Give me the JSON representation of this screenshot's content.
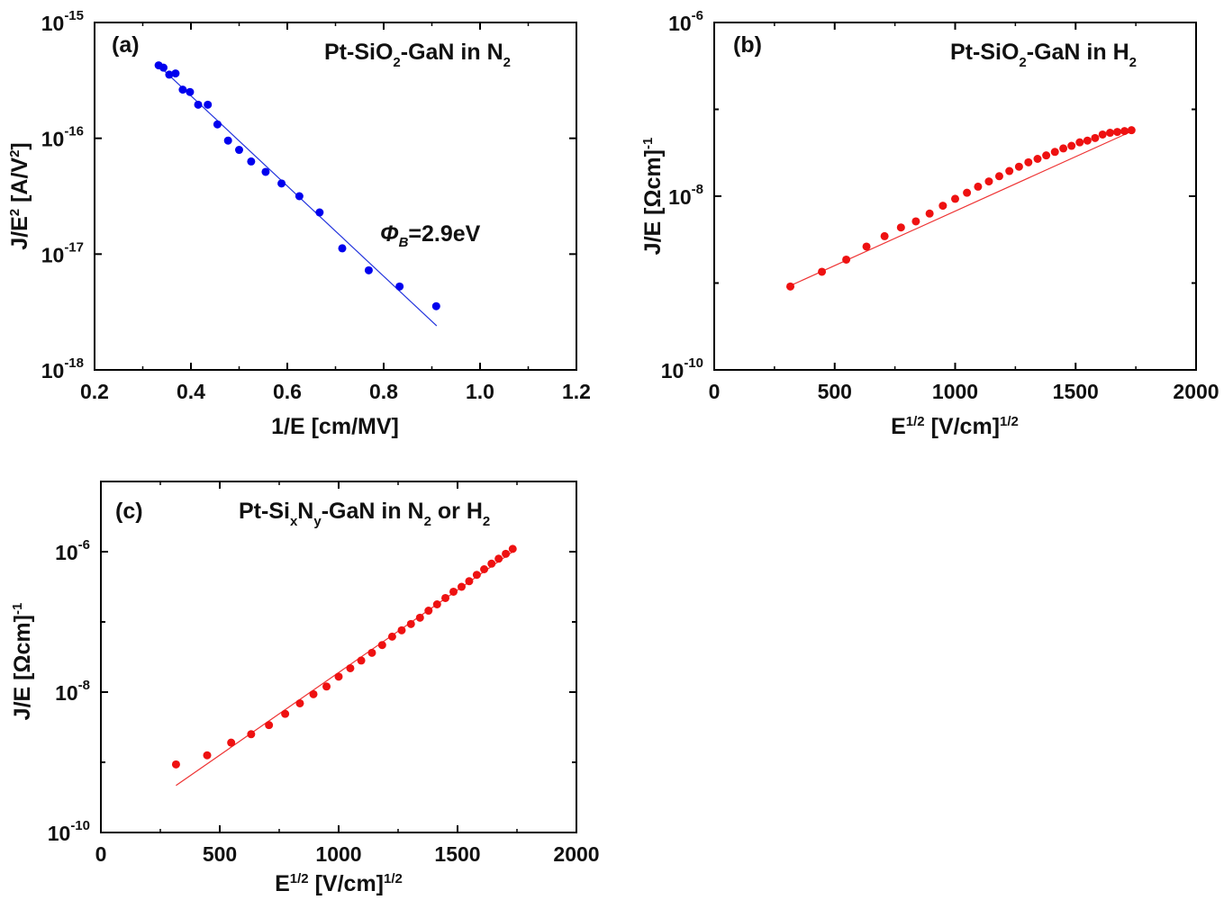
{
  "chart_data": [
    {
      "panel": "a",
      "type": "scatter",
      "label": "(a)",
      "annotation": {
        "prefix": "Pt-SiO",
        "sub": "2",
        "suffix": "-GaN in N",
        "sub2": "2"
      },
      "fit_label": {
        "symbol": "Φ",
        "sub": "B",
        "value": "=2.9eV"
      },
      "xlabel": "1/E [cm/MV]",
      "ylabel": {
        "main": "J/E",
        "sup": "2",
        "unit": " [A/V",
        "unit_sup": "2",
        "end": "]"
      },
      "xlim": [
        0.2,
        1.2
      ],
      "ylim_log10": [
        -18,
        -15
      ],
      "x_ticks": [
        0.2,
        0.4,
        0.6,
        0.8,
        1.0,
        1.2
      ],
      "x_tick_labels": [
        "0.2",
        "0.4",
        "0.6",
        "0.8",
        "1.0",
        "1.2"
      ],
      "y_ticks_log10": [
        -18,
        -17,
        -16,
        -15
      ],
      "y_tick_labels": [
        {
          "base": "10",
          "exp": "-18"
        },
        {
          "base": "10",
          "exp": "-17"
        },
        {
          "base": "10",
          "exp": "-16"
        },
        {
          "base": "10",
          "exp": "-15"
        }
      ],
      "marker_color": "#0000ee",
      "line_color": "#2233dd",
      "fit_line": {
        "x": [
          0.33,
          0.91
        ],
        "log10y": [
          -15.36,
          -17.62
        ]
      },
      "points": [
        {
          "x": 0.333,
          "log10y": -15.37
        },
        {
          "x": 0.343,
          "log10y": -15.39
        },
        {
          "x": 0.355,
          "log10y": -15.45
        },
        {
          "x": 0.368,
          "log10y": -15.44
        },
        {
          "x": 0.383,
          "log10y": -15.58
        },
        {
          "x": 0.398,
          "log10y": -15.6
        },
        {
          "x": 0.415,
          "log10y": -15.71
        },
        {
          "x": 0.435,
          "log10y": -15.71
        },
        {
          "x": 0.455,
          "log10y": -15.88
        },
        {
          "x": 0.477,
          "log10y": -16.02
        },
        {
          "x": 0.5,
          "log10y": -16.1
        },
        {
          "x": 0.525,
          "log10y": -16.2
        },
        {
          "x": 0.555,
          "log10y": -16.29
        },
        {
          "x": 0.588,
          "log10y": -16.39
        },
        {
          "x": 0.625,
          "log10y": -16.5
        },
        {
          "x": 0.667,
          "log10y": -16.64
        },
        {
          "x": 0.714,
          "log10y": -16.95
        },
        {
          "x": 0.769,
          "log10y": -17.14
        },
        {
          "x": 0.833,
          "log10y": -17.28
        },
        {
          "x": 0.909,
          "log10y": -17.45
        }
      ]
    },
    {
      "panel": "b",
      "type": "scatter",
      "label": "(b)",
      "annotation": {
        "prefix": "Pt-SiO",
        "sub": "2",
        "suffix": "-GaN in H",
        "sub2": "2"
      },
      "xlabel": {
        "main": "E",
        "sup": "1/2",
        "unit": " [V/cm]",
        "unit_sup": "1/2"
      },
      "ylabel": {
        "main": "J/E  [Ωcm]",
        "sup": "-1"
      },
      "xlim": [
        0,
        2000
      ],
      "ylim_log10": [
        -10,
        -6
      ],
      "x_ticks": [
        0,
        500,
        1000,
        1500,
        2000
      ],
      "x_tick_labels": [
        "0",
        "500",
        "1000",
        "1500",
        "2000"
      ],
      "y_ticks_log10": [
        -10,
        -8,
        -6
      ],
      "y_tick_labels": [
        {
          "base": "10",
          "exp": "-10"
        },
        {
          "base": "10",
          "exp": "-8"
        },
        {
          "base": "10",
          "exp": "-6"
        }
      ],
      "marker_color": "#ee1111",
      "line_color": "#ee3333",
      "fit_line": {
        "x": [
          300,
          1735
        ],
        "log10y": [
          -9.05,
          -7.25
        ]
      },
      "points": [
        {
          "x": 316,
          "log10y": -9.04
        },
        {
          "x": 447,
          "log10y": -8.87
        },
        {
          "x": 548,
          "log10y": -8.73
        },
        {
          "x": 632,
          "log10y": -8.58
        },
        {
          "x": 707,
          "log10y": -8.46
        },
        {
          "x": 775,
          "log10y": -8.36
        },
        {
          "x": 837,
          "log10y": -8.29
        },
        {
          "x": 894,
          "log10y": -8.2
        },
        {
          "x": 949,
          "log10y": -8.11
        },
        {
          "x": 1000,
          "log10y": -8.03
        },
        {
          "x": 1049,
          "log10y": -7.96
        },
        {
          "x": 1095,
          "log10y": -7.89
        },
        {
          "x": 1140,
          "log10y": -7.83
        },
        {
          "x": 1183,
          "log10y": -7.77
        },
        {
          "x": 1225,
          "log10y": -7.71
        },
        {
          "x": 1265,
          "log10y": -7.66
        },
        {
          "x": 1304,
          "log10y": -7.61
        },
        {
          "x": 1342,
          "log10y": -7.57
        },
        {
          "x": 1378,
          "log10y": -7.53
        },
        {
          "x": 1414,
          "log10y": -7.49
        },
        {
          "x": 1449,
          "log10y": -7.45
        },
        {
          "x": 1483,
          "log10y": -7.42
        },
        {
          "x": 1517,
          "log10y": -7.38
        },
        {
          "x": 1549,
          "log10y": -7.36
        },
        {
          "x": 1581,
          "log10y": -7.33
        },
        {
          "x": 1612,
          "log10y": -7.29
        },
        {
          "x": 1643,
          "log10y": -7.27
        },
        {
          "x": 1673,
          "log10y": -7.26
        },
        {
          "x": 1703,
          "log10y": -7.25
        },
        {
          "x": 1732,
          "log10y": -7.24
        }
      ]
    },
    {
      "panel": "c",
      "type": "scatter",
      "label": "(c)",
      "annotation": {
        "prefix": "Pt-Si",
        "sub": "x",
        "mid": "N",
        "sub_mid": "y",
        "suffix": "-GaN in N",
        "sub2": "2",
        "tail": " or H",
        "sub3": "2"
      },
      "xlabel": {
        "main": "E",
        "sup": "1/2",
        "unit": " [V/cm]",
        "unit_sup": "1/2"
      },
      "ylabel": {
        "main": "J/E [Ωcm]",
        "sup": "-1"
      },
      "xlim": [
        0,
        2000
      ],
      "ylim_log10": [
        -10,
        -5
      ],
      "x_ticks": [
        0,
        500,
        1000,
        1500,
        2000
      ],
      "x_tick_labels": [
        "0",
        "500",
        "1000",
        "1500",
        "2000"
      ],
      "y_ticks_log10": [
        -10,
        -8,
        -6
      ],
      "y_tick_labels": [
        {
          "base": "10",
          "exp": "-10"
        },
        {
          "base": "10",
          "exp": "-8"
        },
        {
          "base": "10",
          "exp": "-6"
        }
      ],
      "marker_color": "#ee1111",
      "line_color": "#ee3333",
      "fit_line": {
        "x": [
          316,
          1732
        ],
        "log10y": [
          -9.33,
          -6.0
        ]
      },
      "points": [
        {
          "x": 316,
          "log10y": -9.03
        },
        {
          "x": 447,
          "log10y": -8.9
        },
        {
          "x": 548,
          "log10y": -8.72
        },
        {
          "x": 632,
          "log10y": -8.6
        },
        {
          "x": 707,
          "log10y": -8.47
        },
        {
          "x": 775,
          "log10y": -8.31
        },
        {
          "x": 837,
          "log10y": -8.16
        },
        {
          "x": 894,
          "log10y": -8.03
        },
        {
          "x": 949,
          "log10y": -7.92
        },
        {
          "x": 1000,
          "log10y": -7.78
        },
        {
          "x": 1049,
          "log10y": -7.66
        },
        {
          "x": 1095,
          "log10y": -7.55
        },
        {
          "x": 1140,
          "log10y": -7.44
        },
        {
          "x": 1183,
          "log10y": -7.33
        },
        {
          "x": 1225,
          "log10y": -7.21
        },
        {
          "x": 1265,
          "log10y": -7.12
        },
        {
          "x": 1304,
          "log10y": -7.03
        },
        {
          "x": 1342,
          "log10y": -6.94
        },
        {
          "x": 1378,
          "log10y": -6.84
        },
        {
          "x": 1414,
          "log10y": -6.75
        },
        {
          "x": 1449,
          "log10y": -6.66
        },
        {
          "x": 1483,
          "log10y": -6.57
        },
        {
          "x": 1517,
          "log10y": -6.5
        },
        {
          "x": 1549,
          "log10y": -6.42
        },
        {
          "x": 1581,
          "log10y": -6.33
        },
        {
          "x": 1612,
          "log10y": -6.25
        },
        {
          "x": 1643,
          "log10y": -6.17
        },
        {
          "x": 1673,
          "log10y": -6.1
        },
        {
          "x": 1703,
          "log10y": -6.03
        },
        {
          "x": 1732,
          "log10y": -5.96
        }
      ]
    }
  ]
}
